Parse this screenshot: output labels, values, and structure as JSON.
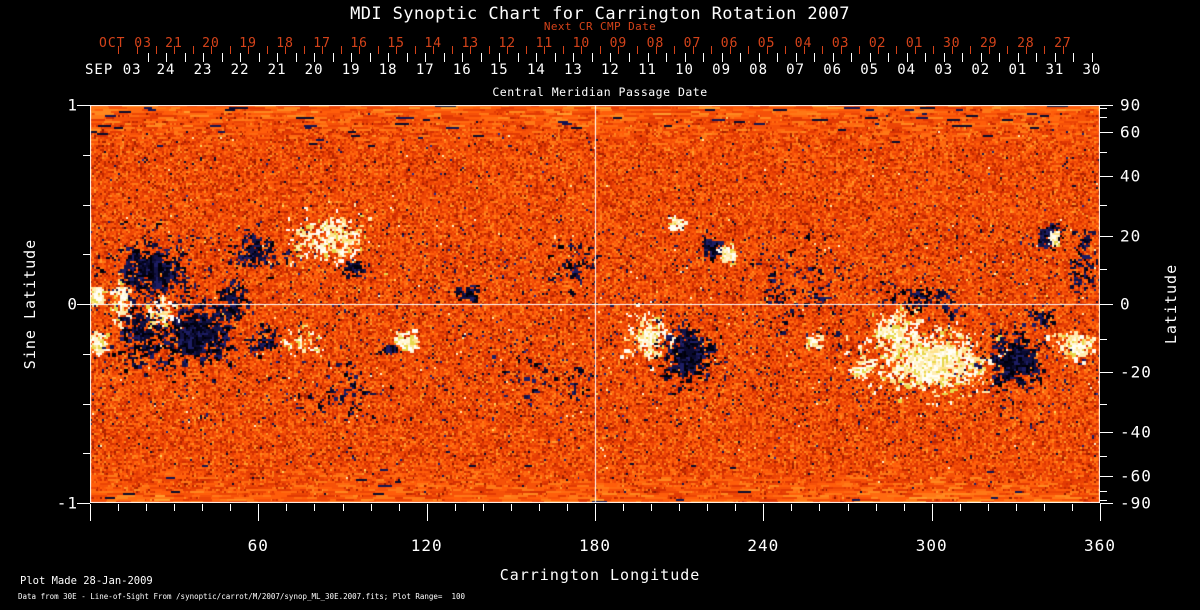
{
  "title": "MDI Synoptic Chart for Carrington Rotation 2007",
  "axis_next_cr": {
    "label": "Next CR CMP Date",
    "month_label": "OCT 03",
    "days": [
      "21",
      "20",
      "19",
      "18",
      "17",
      "16",
      "15",
      "14",
      "13",
      "12",
      "11",
      "10",
      "09",
      "08",
      "07",
      "06",
      "05",
      "04",
      "03",
      "02",
      "01",
      "30",
      "29",
      "28",
      "27"
    ]
  },
  "axis_cmp": {
    "label": "Central Meridian Passage Date",
    "month_label": "SEP 03",
    "days": [
      "24",
      "23",
      "22",
      "21",
      "20",
      "19",
      "18",
      "17",
      "16",
      "15",
      "14",
      "13",
      "12",
      "11",
      "10",
      "09",
      "08",
      "07",
      "06",
      "05",
      "04",
      "03",
      "02",
      "01",
      "31",
      "30"
    ]
  },
  "axis_left": {
    "label": "Sine Latitude",
    "ticks": [
      "1",
      "0",
      "-1"
    ]
  },
  "axis_right": {
    "label": "Latitude",
    "ticks": [
      "90",
      "60",
      "40",
      "20",
      "0",
      "-20",
      "-40",
      "-60",
      "-90"
    ]
  },
  "axis_bottom": {
    "label": "Carrington Longitude",
    "ticks": [
      "60",
      "120",
      "180",
      "240",
      "300",
      "360"
    ]
  },
  "footer": {
    "line1": "Plot Made 28-Jan-2009",
    "line2": "Data from 30E - Line-of-Sight From /synoptic/carrot/M/2007/synop_ML_30E.2007.fits; Plot Range=  100"
  },
  "colors": {
    "background": "#000000",
    "text": "#ffffff",
    "date_red": "#d5431a",
    "grid_line": "#ffffff",
    "map_ramp": [
      "#8f1800",
      "#a82000",
      "#c02800",
      "#d43002",
      "#e23a03",
      "#ec4505",
      "#f65108",
      "#ff5d0a",
      "#ff6a10",
      "#ff7816",
      "#ff881e",
      "#ff9c2c"
    ],
    "map_navy_speckle": [
      "#0a0a2c",
      "#141450",
      "#1f1f6e",
      "#2a2a8a"
    ],
    "map_bright_speckle": [
      "#ffd560",
      "#ffe9a8",
      "#fff3c8"
    ],
    "positive_polarity": [
      "#fffef2",
      "#fff7d8",
      "#ffedb2",
      "#ffe28a",
      "#fffff8",
      "#e8d84a"
    ],
    "negative_polarity": [
      "#030318",
      "#0a0a30",
      "#131347",
      "#1d1d63",
      "#000008"
    ]
  },
  "chart_data": {
    "type": "heatmap",
    "title": "MDI Synoptic Chart for Carrington Rotation 2007",
    "xlabel": "Carrington Longitude",
    "ylabel_left": "Sine Latitude",
    "ylabel_right": "Latitude",
    "xlim": [
      0,
      360
    ],
    "ylim_sine_latitude": [
      -1,
      1
    ],
    "x_ticks_major": [
      60,
      120,
      180,
      240,
      300,
      360
    ],
    "x_tick_minor_step": 10,
    "left_ticks_sine_latitude": [
      1,
      0,
      -1
    ],
    "left_tick_minor_step": 0.25,
    "right_ticks_latitude": [
      90,
      60,
      40,
      20,
      0,
      -20,
      -40,
      -60,
      -90
    ],
    "right_tick_minor_step_deg": 10,
    "grid_lines": {
      "longitude": [
        180
      ],
      "sine_latitude": [
        0
      ]
    },
    "value_range_gauss": [
      -100,
      100
    ],
    "cmp_date_axis": {
      "month": "SEP 03",
      "first_day": 24,
      "first_day_longitude_deg": 27.1,
      "day_spacing_deg": 13.2
    },
    "next_cr_date_axis": {
      "month": "OCT 03",
      "first_day": 21,
      "first_day_longitude_deg": 29.9,
      "day_spacing_deg": 13.2
    },
    "description": "Line-of-sight photospheric magnetic field synoptic map: orange/red noise background, white = positive polarity, dark navy = negative polarity active regions; poles smoothed into horizontal streaks.",
    "active_regions": [
      {
        "lon": 1.8,
        "sinlat": 0.045,
        "lon_spread": 2.0,
        "sinlat_spread": 0.05,
        "polarity": "positive",
        "count": 60
      },
      {
        "lon": 2.5,
        "sinlat": -0.196,
        "lon_spread": 3.0,
        "sinlat_spread": 0.06,
        "polarity": "positive",
        "count": 70
      },
      {
        "lon": 21.4,
        "sinlat": 0.181,
        "lon_spread": 13.5,
        "sinlat_spread": 0.151,
        "polarity": "negative",
        "count": 220
      },
      {
        "lon": 36.7,
        "sinlat": -0.141,
        "lon_spread": 15.0,
        "sinlat_spread": 0.161,
        "polarity": "negative",
        "count": 300
      },
      {
        "lon": 17.8,
        "sinlat": -0.131,
        "lon_spread": 9.0,
        "sinlat_spread": 0.176,
        "polarity": "negative",
        "count": 140
      },
      {
        "lon": 25.0,
        "sinlat": -0.03,
        "lon_spread": 6.4,
        "sinlat_spread": 0.09,
        "polarity": "positive",
        "count": 50
      },
      {
        "lon": 10.0,
        "sinlat": 0.02,
        "lon_spread": 4.3,
        "sinlat_spread": 0.151,
        "polarity": "positive",
        "count": 50
      },
      {
        "lon": 49.9,
        "sinlat": 0.02,
        "lon_spread": 7.1,
        "sinlat_spread": 0.126,
        "polarity": "negative",
        "count": 80
      },
      {
        "lon": 58.1,
        "sinlat": 0.271,
        "lon_spread": 7.8,
        "sinlat_spread": 0.1,
        "polarity": "negative",
        "count": 90
      },
      {
        "lon": 85.5,
        "sinlat": 0.322,
        "lon_spread": 13.5,
        "sinlat_spread": 0.111,
        "polarity": "positive",
        "count": 160
      },
      {
        "lon": 93.4,
        "sinlat": 0.181,
        "lon_spread": 5.7,
        "sinlat_spread": 0.05,
        "polarity": "negative",
        "count": 40
      },
      {
        "lon": 74.9,
        "sinlat": -0.181,
        "lon_spread": 8.9,
        "sinlat_spread": 0.09,
        "polarity": "positive",
        "count": 40
      },
      {
        "lon": 61.3,
        "sinlat": -0.181,
        "lon_spread": 7.1,
        "sinlat_spread": 0.09,
        "polarity": "negative",
        "count": 50
      },
      {
        "lon": 112.3,
        "sinlat": -0.181,
        "lon_spread": 4.3,
        "sinlat_spread": 0.055,
        "polarity": "positive",
        "count": 80
      },
      {
        "lon": 106.2,
        "sinlat": -0.221,
        "lon_spread": 2.9,
        "sinlat_spread": 0.03,
        "polarity": "negative",
        "count": 25
      },
      {
        "lon": 92.7,
        "sinlat": -0.432,
        "lon_spread": 21.4,
        "sinlat_spread": 0.176,
        "polarity": "negative",
        "count": 50
      },
      {
        "lon": 133.7,
        "sinlat": 0.06,
        "lon_spread": 5.0,
        "sinlat_spread": 0.05,
        "polarity": "negative",
        "count": 30
      },
      {
        "lon": 162.2,
        "sinlat": -0.382,
        "lon_spread": 21.4,
        "sinlat_spread": 0.151,
        "polarity": "negative",
        "count": 40
      },
      {
        "lon": 172.9,
        "sinlat": 0.196,
        "lon_spread": 10.7,
        "sinlat_spread": 0.176,
        "polarity": "negative",
        "count": 50
      },
      {
        "lon": 198.9,
        "sinlat": -0.156,
        "lon_spread": 7.1,
        "sinlat_spread": 0.111,
        "polarity": "positive",
        "count": 140
      },
      {
        "lon": 213.1,
        "sinlat": -0.241,
        "lon_spread": 9.3,
        "sinlat_spread": 0.141,
        "polarity": "negative",
        "count": 200
      },
      {
        "lon": 221.0,
        "sinlat": 0.296,
        "lon_spread": 4.3,
        "sinlat_spread": 0.07,
        "polarity": "negative",
        "count": 60
      },
      {
        "lon": 227.0,
        "sinlat": 0.246,
        "lon_spread": 3.6,
        "sinlat_spread": 0.07,
        "polarity": "positive",
        "count": 50
      },
      {
        "lon": 208.9,
        "sinlat": 0.412,
        "lon_spread": 2.9,
        "sinlat_spread": 0.04,
        "polarity": "positive",
        "count": 30
      },
      {
        "lon": 253.1,
        "sinlat": 0.07,
        "lon_spread": 17.8,
        "sinlat_spread": 0.302,
        "polarity": "negative",
        "count": 80
      },
      {
        "lon": 257.4,
        "sinlat": -0.181,
        "lon_spread": 3.6,
        "sinlat_spread": 0.035,
        "polarity": "positive",
        "count": 30
      },
      {
        "lon": 275.2,
        "sinlat": -0.332,
        "lon_spread": 4.3,
        "sinlat_spread": 0.075,
        "polarity": "positive",
        "count": 40
      },
      {
        "lon": 286.9,
        "sinlat": -0.131,
        "lon_spread": 8.9,
        "sinlat_spread": 0.1,
        "polarity": "positive",
        "count": 120
      },
      {
        "lon": 299.4,
        "sinlat": -0.281,
        "lon_spread": 19.6,
        "sinlat_spread": 0.151,
        "polarity": "positive",
        "count": 500
      },
      {
        "lon": 295.8,
        "sinlat": 0.02,
        "lon_spread": 16.0,
        "sinlat_spread": 0.1,
        "polarity": "negative",
        "count": 80
      },
      {
        "lon": 329.7,
        "sinlat": -0.281,
        "lon_spread": 8.9,
        "sinlat_spread": 0.141,
        "polarity": "negative",
        "count": 220
      },
      {
        "lon": 338.6,
        "sinlat": -0.07,
        "lon_spread": 5.0,
        "sinlat_spread": 0.06,
        "polarity": "negative",
        "count": 40
      },
      {
        "lon": 341.5,
        "sinlat": 0.347,
        "lon_spread": 4.6,
        "sinlat_spread": 0.065,
        "polarity": "negative",
        "count": 80
      },
      {
        "lon": 343.2,
        "sinlat": 0.337,
        "lon_spread": 1.8,
        "sinlat_spread": 0.04,
        "polarity": "positive",
        "count": 30
      },
      {
        "lon": 353.5,
        "sinlat": 0.221,
        "lon_spread": 5.7,
        "sinlat_spread": 0.176,
        "polarity": "negative",
        "count": 70
      },
      {
        "lon": 351.0,
        "sinlat": -0.206,
        "lon_spread": 6.4,
        "sinlat_spread": 0.065,
        "polarity": "positive",
        "count": 90
      }
    ]
  }
}
